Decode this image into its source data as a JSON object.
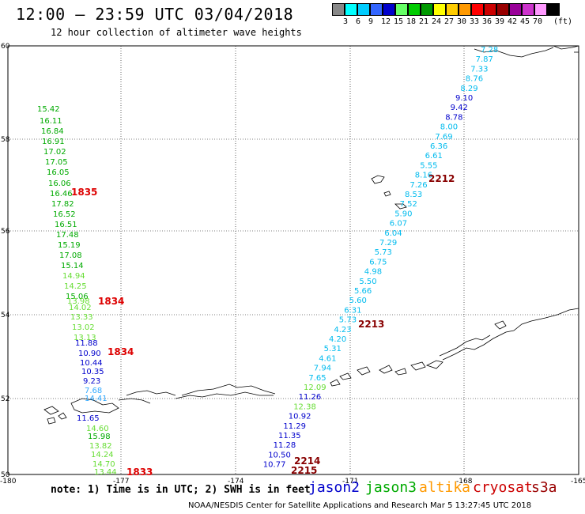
{
  "header": {
    "title": "12:00 – 23:59 UTC 03/04/2018",
    "subtitle": "12 hour collection of altimeter wave heights"
  },
  "scale": {
    "colors": [
      "#888888",
      "#00ffff",
      "#00ccff",
      "#3366ff",
      "#0000cc",
      "#66ff66",
      "#00cc00",
      "#009900",
      "#ffff00",
      "#ffcc00",
      "#ff9900",
      "#ff0000",
      "#cc0000",
      "#990000",
      "#990099",
      "#cc33cc",
      "#ff99ff",
      "#000000"
    ],
    "labels": [
      "3",
      "6",
      "9",
      "12",
      "15",
      "18",
      "21",
      "24",
      "27",
      "30",
      "33",
      "36",
      "39",
      "42",
      "45",
      "70"
    ],
    "unit": "(ft)"
  },
  "axes": {
    "lat_labels": [
      "60",
      "58",
      "56",
      "54",
      "52",
      "50"
    ],
    "lon_labels": [
      "-180",
      "-177",
      "-174",
      "-171",
      "-168",
      "-165"
    ]
  },
  "tracks": {
    "green_west": {
      "color": "#00aa00",
      "values": [
        "15.42",
        "16.11",
        "16.84",
        "16.91",
        "17.02",
        "17.05",
        "16.05",
        "16.06",
        "16.46",
        "17.82",
        "16.52",
        "16.51",
        "17.48",
        "15.19",
        "17.08",
        "15.14",
        "14.94",
        "14.25",
        "15.06",
        "13.98",
        "14.02",
        "13.33",
        "13.02",
        "13.13"
      ]
    },
    "blue_west": {
      "values": [
        "11.88",
        "10.90",
        "10.44",
        "10.35",
        "9.23",
        "7.68",
        "14.41",
        "11.65",
        "14.60",
        "15.98",
        "13.82",
        "14.24",
        "14.70",
        "13.44"
      ]
    },
    "east": {
      "values": [
        "7.28",
        "7.87",
        "7.33",
        "8.76",
        "8.29",
        "9.10",
        "9.42",
        "8.78",
        "8.00",
        "7.69",
        "6.36",
        "6.61",
        "5.55",
        "8.16",
        "7.26",
        "8.53",
        "7.52",
        "5.90",
        "6.07",
        "6.04",
        "7.29",
        "5.73",
        "6.75",
        "4.98",
        "5.50",
        "5.66",
        "5.60",
        "6.31",
        "5.73",
        "4.23",
        "4.20",
        "5.31",
        "4.61",
        "7.94",
        "7.65",
        "12.09",
        "11.26",
        "12.38",
        "10.92",
        "11.29",
        "11.35",
        "11.28",
        "10.50",
        "10.77"
      ]
    },
    "time_labels": [
      "1835",
      "1834",
      "1834",
      "1833",
      "2212",
      "2213",
      "2214",
      "2215"
    ]
  },
  "footer": {
    "note": "note: 1) Time is in UTC; 2) SWH is in feet",
    "legend": [
      {
        "label": "jason2",
        "color": "#0000cc"
      },
      {
        "label": "jason3",
        "color": "#00aa00"
      },
      {
        "label": "altika",
        "color": "#ff9900"
      },
      {
        "label": "cryosat",
        "color": "#cc0000"
      },
      {
        "label": "s3a",
        "color": "#990000"
      }
    ],
    "credit": "NOAA/NESDIS Center for Satellite Applications and Research    Mar  5 13:27:45 UTC 2018"
  }
}
